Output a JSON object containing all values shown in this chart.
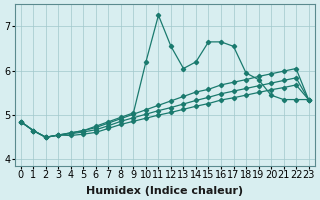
{
  "x": [
    0,
    1,
    2,
    3,
    4,
    5,
    6,
    7,
    8,
    9,
    10,
    11,
    12,
    13,
    14,
    15,
    16,
    17,
    18,
    19,
    20,
    21,
    22,
    23
  ],
  "y_jagged": [
    4.85,
    4.65,
    4.5,
    4.55,
    4.6,
    4.65,
    4.75,
    4.85,
    4.95,
    5.05,
    6.2,
    7.25,
    6.55,
    6.05,
    6.2,
    6.65,
    6.65,
    6.55,
    5.95,
    5.8,
    5.45,
    5.35,
    5.35,
    5.35
  ],
  "y_top": [
    4.85,
    4.65,
    4.5,
    4.55,
    4.6,
    4.65,
    4.72,
    4.82,
    4.92,
    5.02,
    5.12,
    5.22,
    5.32,
    5.42,
    5.52,
    5.58,
    5.68,
    5.74,
    5.8,
    5.87,
    5.93,
    5.99,
    6.05,
    5.35
  ],
  "y_mid": [
    4.85,
    4.65,
    4.5,
    4.55,
    4.58,
    4.62,
    4.67,
    4.76,
    4.86,
    4.94,
    5.02,
    5.1,
    5.17,
    5.25,
    5.33,
    5.4,
    5.48,
    5.54,
    5.6,
    5.66,
    5.72,
    5.78,
    5.84,
    5.35
  ],
  "y_bot": [
    4.85,
    4.65,
    4.5,
    4.55,
    4.54,
    4.57,
    4.61,
    4.7,
    4.79,
    4.86,
    4.93,
    5.0,
    5.06,
    5.13,
    5.2,
    5.26,
    5.34,
    5.39,
    5.45,
    5.51,
    5.57,
    5.62,
    5.68,
    5.35
  ],
  "color": "#1a7a6e",
  "bg_color": "#d8eef0",
  "grid_color": "#a0c8cc",
  "ylim": [
    3.85,
    7.5
  ],
  "yticks": [
    4,
    5,
    6,
    7
  ],
  "xlabel": "Humidex (Indice chaleur)",
  "xlabel_fontsize": 8,
  "tick_fontsize": 7
}
